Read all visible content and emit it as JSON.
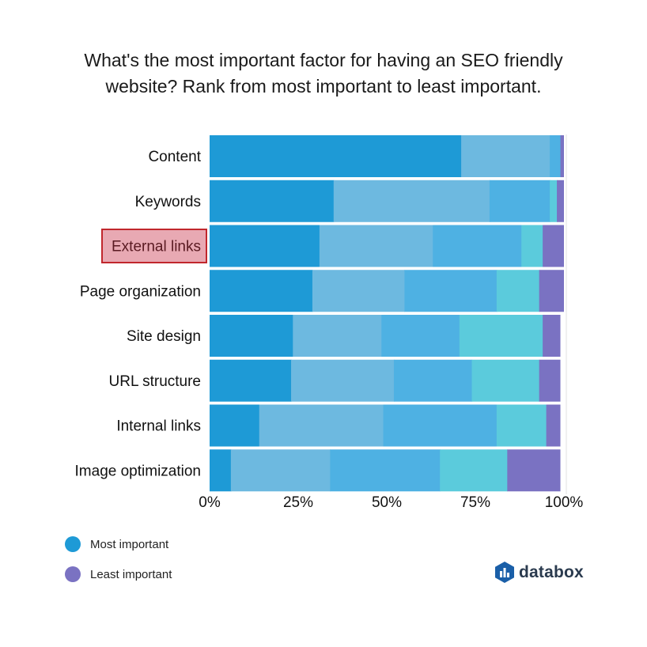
{
  "title": {
    "line1": "What's the most important factor for having an SEO friendly",
    "line2": "website? Rank from most important to least important."
  },
  "legend": [
    {
      "label": "Most important",
      "color": "#1e9ad6"
    },
    {
      "label": "Least important",
      "color": "#7a72c2"
    }
  ],
  "brand": {
    "name": "databox"
  },
  "colors": {
    "rank_1": "#1e9ad6",
    "rank_2": "#6db9e0",
    "rank_3": "#4eb1e3",
    "rank_4": "#5bcbdc",
    "rank_5": "#7a72c2",
    "highlight_fill": "#e8a9b3",
    "highlight_border": "#c1272d",
    "highlight_text": "#5a1a22"
  },
  "chart_data": {
    "type": "bar",
    "orientation": "horizontal",
    "stacked": true,
    "categories": [
      "Content",
      "Keywords",
      "External links",
      "Page organization",
      "Site design",
      "URL structure",
      "Internal links",
      "Image optimization"
    ],
    "highlighted_category": "External links",
    "series": [
      {
        "values": [
          71,
          35,
          31,
          29,
          23.5,
          23,
          14,
          6
        ]
      },
      {
        "values": [
          25,
          44,
          32,
          26,
          25,
          29,
          35,
          28
        ]
      },
      {
        "values": [
          3,
          17,
          25,
          26,
          22,
          22,
          32,
          31
        ]
      },
      {
        "values": [
          0,
          2,
          6,
          12,
          23.5,
          19,
          14,
          19
        ]
      },
      {
        "values": [
          1,
          2,
          6,
          7,
          5,
          6,
          4,
          15
        ]
      }
    ],
    "xlim": [
      0,
      100
    ],
    "xticks": [
      "0%",
      "25%",
      "50%",
      "75%",
      "100%"
    ],
    "xtick_values": [
      0,
      25,
      50,
      75,
      100
    ],
    "legend_position": "bottom-left"
  }
}
